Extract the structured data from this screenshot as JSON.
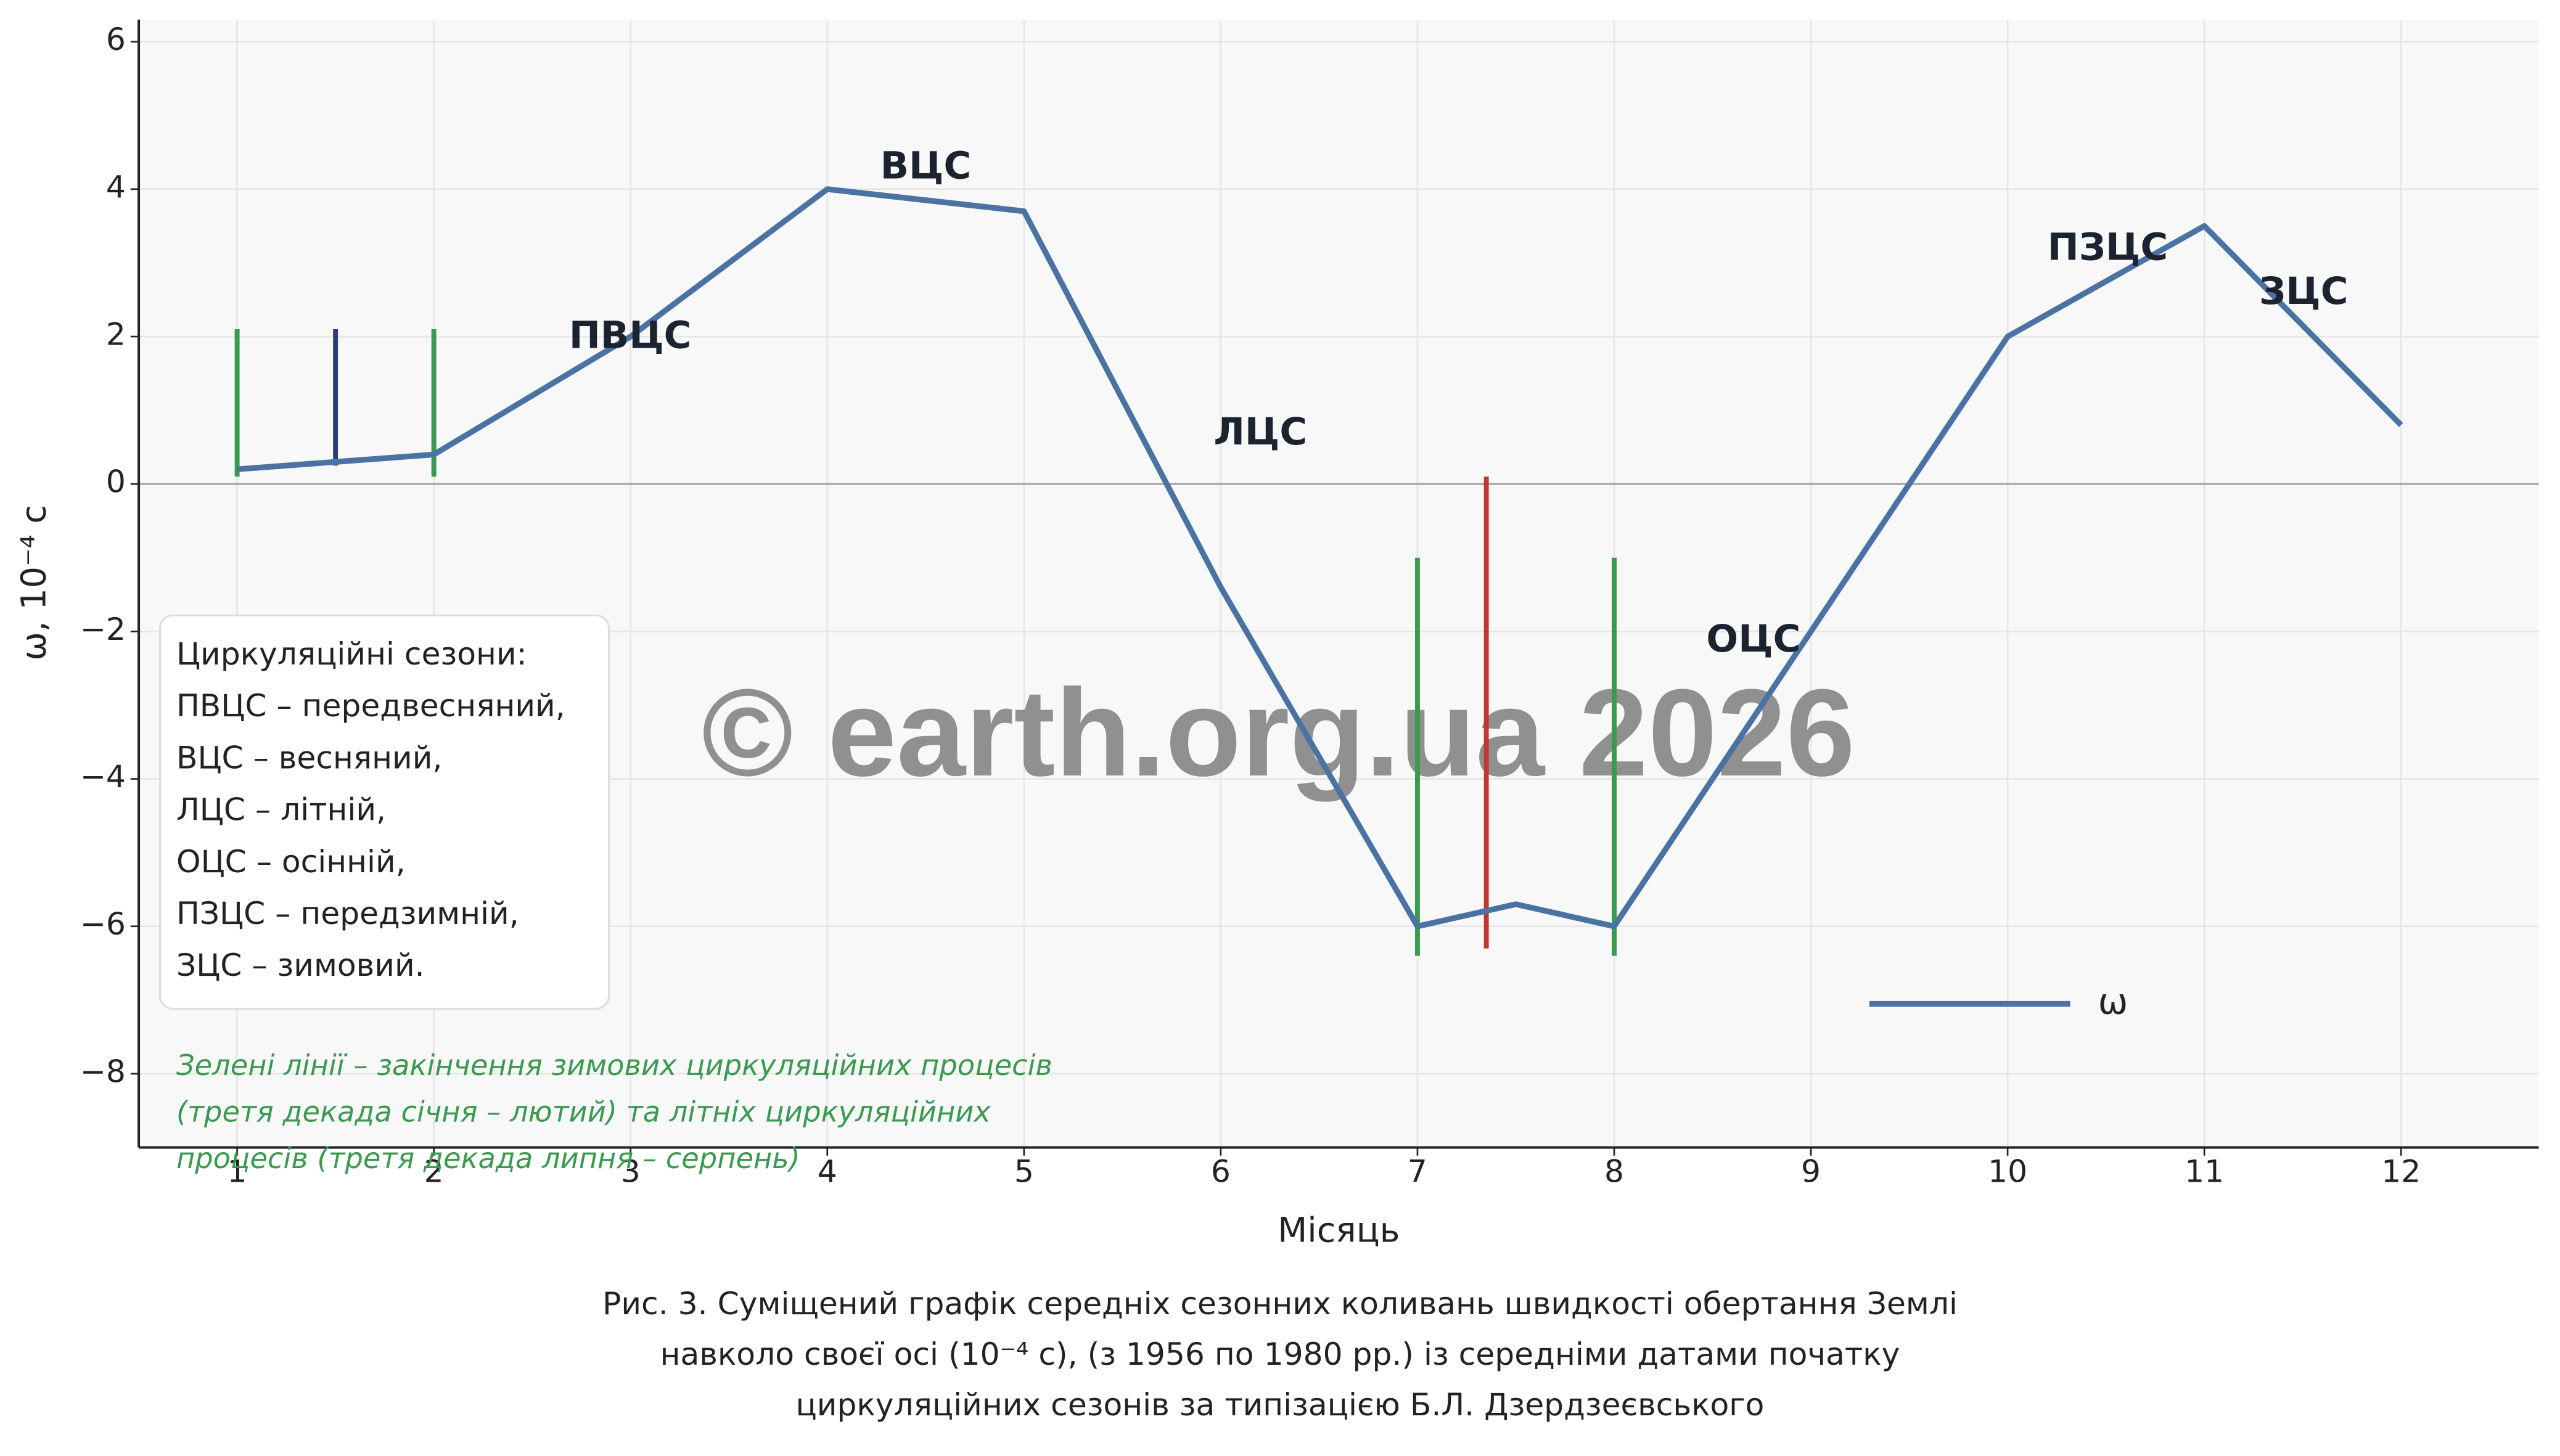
{
  "chart_data": {
    "type": "line",
    "x": [
      1,
      2,
      3,
      4,
      5,
      6,
      7,
      7.5,
      8,
      9,
      10,
      11,
      12
    ],
    "series": [
      {
        "name": "ω",
        "color": "#4a72a2",
        "values": [
          0.2,
          0.4,
          2.0,
          4.0,
          3.7,
          -1.4,
          -6.0,
          -5.7,
          -6.0,
          -2.0,
          2.0,
          3.5,
          0.8
        ]
      }
    ],
    "vlines": [
      {
        "x": 1,
        "values": [
          0.1,
          2.1
        ],
        "color": "#3a9a50"
      },
      {
        "x": 1.5,
        "values": [
          0.25,
          2.1
        ],
        "color": "#2c3e7a"
      },
      {
        "x": 2,
        "values": [
          0.1,
          2.1
        ],
        "color": "#3a9a50"
      },
      {
        "x": 7,
        "values": [
          -6.4,
          -1.0
        ],
        "color": "#3a9a50"
      },
      {
        "x": 7.35,
        "values": [
          -6.3,
          0.1
        ],
        "color": "#c0392b"
      },
      {
        "x": 8,
        "values": [
          -6.4,
          -1.0
        ],
        "color": "#3a9a50"
      }
    ],
    "annotations": [
      "ПВЦС",
      "ВЦС",
      "ЛЦС",
      "ОЦС",
      "ПЗЦС",
      "ЗЦС"
    ],
    "xlim": [
      0.5,
      12.7
    ],
    "ylim": [
      -9,
      6.3
    ],
    "xticks": [
      1,
      2,
      3,
      4,
      5,
      6,
      7,
      8,
      9,
      10,
      11,
      12
    ],
    "yticks": [
      {
        "value": -8,
        "label": "−8"
      },
      {
        "value": -6,
        "label": "−6"
      },
      {
        "value": -4,
        "label": "−4"
      },
      {
        "value": -2,
        "label": "−2"
      },
      0,
      2,
      4,
      6
    ],
    "xlabel": "Місяць",
    "ylabel": "ω, 10⁻⁴ с",
    "grid": true,
    "legend_box": [
      "Циркуляційні сезони:",
      "ПВЦС – передвесняний,",
      "ВЦС – весняний,",
      "ЛЦС – літній,",
      "ОЦС – осінній,",
      "ПЗЦС – передзимній,",
      "ЗЦС – зимовий."
    ],
    "note": [
      "Зелені лінії – закінчення зимових циркуляційних процесів",
      "(третя декада січня – лютий) та літніх циркуляційних",
      "процесів (третя декада липня – серпень)"
    ],
    "watermark": "© earth.org.ua 2026",
    "caption": [
      "Рис. 3. Суміщений графік середніх сезонних коливань швидкості обертання Землі",
      "навколо своєї осі (10⁻⁴ с), (з 1956 по 1980 рр.) із середніми датами початку",
      "циркуляційних сезонів за типізацією Б.Л. Дзердзеєвського"
    ]
  }
}
